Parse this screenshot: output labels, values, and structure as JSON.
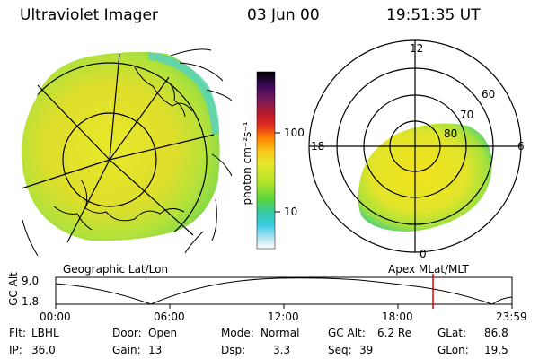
{
  "header": {
    "title": "Ultraviolet Imager",
    "date": "03 Jun 00",
    "time": "19:51:35 UT"
  },
  "colorbar": {
    "unit_label": "photon cm⁻²s⁻¹",
    "ticks": [
      "100",
      "10"
    ],
    "colors": [
      "#000000",
      "#2a0a4a",
      "#5a1a7a",
      "#7a1a5a",
      "#a81a2a",
      "#d42020",
      "#f05a10",
      "#ff9a00",
      "#f6c818",
      "#e6e62a",
      "#c8ea2a",
      "#8ade2a",
      "#4ad24a",
      "#30c8b0",
      "#40cce6",
      "#9ae0f0",
      "#dcecf2",
      "#ffffff"
    ]
  },
  "left_panel": {
    "caption": "Geographic Lat/Lon"
  },
  "right_panel": {
    "caption": "Apex MLat/MLT",
    "mlt_labels": {
      "top": "12",
      "left": "18",
      "right": "6",
      "bottom": "0"
    },
    "lat_labels": [
      "60",
      "70",
      "80"
    ]
  },
  "altitude_plot": {
    "ylabel": "GC Alt",
    "yticks": [
      "9.0",
      "1.8"
    ],
    "xticks": [
      "00:00",
      "06:00",
      "12:00",
      "18:00",
      "23:59"
    ],
    "current_marker_color": "#e00000"
  },
  "info": {
    "flt_label": "Flt:",
    "flt_value": "LBHL",
    "door_label": "Door:",
    "door_value": "Open",
    "mode_label": "Mode:",
    "mode_value": "Normal",
    "gcalt_label": "GC Alt:",
    "gcalt_value": "6.2 Re",
    "glat_label": "GLat:",
    "glat_value": "86.8",
    "ip_label": "IP:",
    "ip_value": "36.0",
    "gain_label": "Gain:",
    "gain_value": "13",
    "dsp_label": "Dsp:",
    "dsp_value": "3.3",
    "seq_label": "Seq:",
    "seq_value": "39",
    "glon_label": "GLon:",
    "glon_value": "19.5"
  }
}
